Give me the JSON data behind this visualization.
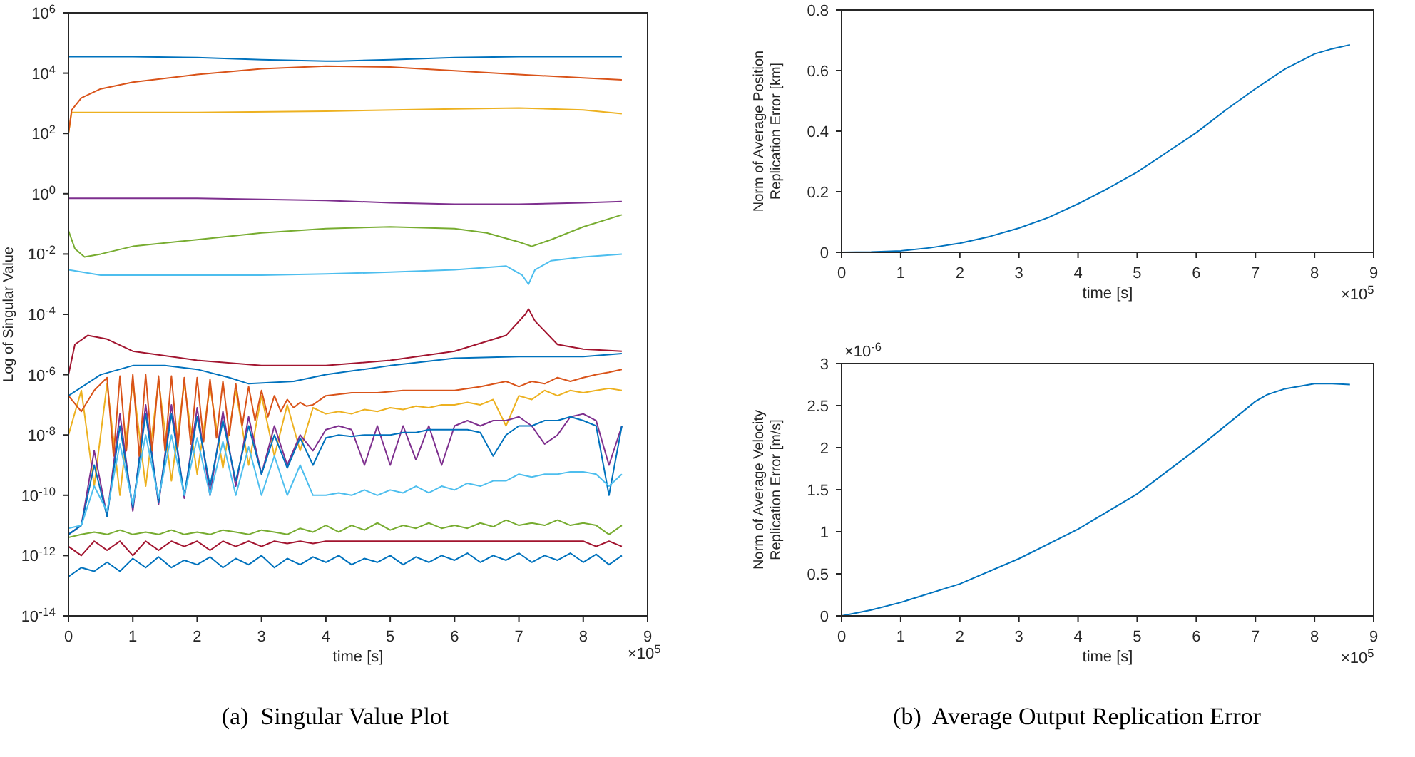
{
  "chart_data": [
    {
      "type": "line",
      "title": "(a)  Singular Value Plot",
      "xlabel": "time [s]",
      "ylabel": "Log of Singular Value",
      "log": true,
      "annotations": [
        "×10$^{5}$"
      ],
      "xlim": [
        0,
        9
      ],
      "xticks": [
        0,
        1,
        2,
        3,
        4,
        5,
        6,
        7,
        8,
        9
      ],
      "ylim": [
        1e-14,
        1000000.0
      ],
      "yticks": [
        {
          "value": 1e-14,
          "label": "10$^{-14}$"
        },
        {
          "value": 1e-12,
          "label": "10$^{-12}$"
        },
        {
          "value": 1e-10,
          "label": "10$^{-10}$"
        },
        {
          "value": 1e-08,
          "label": "10$^{-8}$"
        },
        {
          "value": 1e-06,
          "label": "10$^{-6}$"
        },
        {
          "value": 0.0001,
          "label": "10$^{-4}$"
        },
        {
          "value": 0.01,
          "label": "10$^{-2}$"
        },
        {
          "value": 1,
          "label": "10$^{0}$"
        },
        {
          "value": 100,
          "label": "10$^{2}$"
        },
        {
          "value": 10000,
          "label": "10$^{4}$"
        },
        {
          "value": 1000000,
          "label": "10$^{6}$"
        }
      ],
      "x": [
        0,
        0.2,
        0.4,
        0.6,
        0.8,
        1,
        1.2,
        1.4,
        1.6,
        1.8,
        2,
        2.2,
        2.4,
        2.6,
        2.8,
        3,
        3.2,
        3.4,
        3.6,
        3.8,
        4,
        4.2,
        4.4,
        4.6,
        4.8,
        5,
        5.2,
        5.4,
        5.6,
        5.8,
        6,
        6.2,
        6.4,
        6.6,
        6.8,
        7,
        7.2,
        7.4,
        7.6,
        7.8,
        8,
        8.2,
        8.4,
        8.6
      ],
      "series": [
        {
          "color": "#edb120",
          "values": [
            1e-08,
            3e-07,
            2e-10,
            5e-07,
            1e-10,
            6e-07,
            2e-10,
            6e-07,
            3e-10,
            5e-07,
            5e-10,
            4e-07,
            8e-10,
            3e-07,
            1e-09,
            2e-07,
            2e-09,
            1e-07,
            3e-09,
            8e-08,
            5e-08,
            6e-08,
            5e-08,
            7e-08,
            6e-08,
            8e-08,
            7e-08,
            9e-08,
            8e-08,
            1e-07,
            1e-07,
            1.2e-07,
            1e-07,
            1.5e-07,
            2e-08,
            2e-07,
            1.5e-07,
            3e-07,
            2e-07,
            3e-07,
            2.5e-07,
            3e-07,
            3.5e-07,
            3e-07
          ]
        },
        {
          "color": "#7e2f8e",
          "values": [
            5e-12,
            1e-11,
            3e-09,
            2e-11,
            5e-08,
            3e-11,
            1e-07,
            5e-11,
            1e-07,
            8e-11,
            8e-08,
            1e-10,
            6e-08,
            2e-10,
            4e-08,
            5e-10,
            2e-08,
            1e-09,
            1e-08,
            3e-09,
            1.5e-08,
            2e-08,
            1.5e-08,
            1e-09,
            2e-08,
            1e-09,
            2e-08,
            1.5e-09,
            2e-08,
            1e-09,
            2e-08,
            3e-08,
            2e-08,
            3e-08,
            3e-08,
            4e-08,
            2e-08,
            5e-09,
            1e-08,
            4e-08,
            5e-08,
            3e-08,
            1e-09,
            2e-08
          ]
        },
        {
          "color": "#0072bd",
          "values": [
            5e-12,
            1e-11,
            1e-09,
            2e-11,
            2e-08,
            4e-11,
            5e-08,
            6e-11,
            5e-08,
            1e-10,
            4e-08,
            2e-10,
            3e-08,
            3e-10,
            2e-08,
            5e-10,
            1e-08,
            8e-10,
            8e-09,
            1e-09,
            8e-09,
            1e-08,
            9e-09,
            1e-08,
            1e-08,
            1e-08,
            1.2e-08,
            1.2e-08,
            1.5e-08,
            1.5e-08,
            1.5e-08,
            1.5e-08,
            1.2e-08,
            2e-09,
            1e-08,
            2e-08,
            2e-08,
            3e-08,
            3e-08,
            4e-08,
            3e-08,
            2e-08,
            1e-10,
            2e-08
          ]
        },
        {
          "color": "#4dbeee",
          "values": [
            8e-12,
            1e-11,
            2e-10,
            3e-11,
            5e-09,
            5e-11,
            1e-08,
            8e-11,
            1e-08,
            1e-10,
            8e-09,
            1e-10,
            6e-09,
            1e-10,
            4e-09,
            1e-10,
            2e-09,
            1e-10,
            1e-09,
            1e-10,
            1e-10,
            1.2e-10,
            1e-10,
            1.5e-10,
            1e-10,
            1.5e-10,
            1.2e-10,
            2e-10,
            1.2e-10,
            2e-10,
            1.5e-10,
            2.5e-10,
            2e-10,
            3e-10,
            3e-10,
            5e-10,
            4e-10,
            5e-10,
            5e-10,
            6e-10,
            6e-10,
            5e-10,
            2e-10,
            5e-10
          ]
        },
        {
          "color": "#77ac30",
          "values": [
            4e-12,
            5e-12,
            6e-12,
            5e-12,
            7e-12,
            5e-12,
            6e-12,
            5e-12,
            7e-12,
            5e-12,
            6e-12,
            5e-12,
            7e-12,
            6e-12,
            5e-12,
            7e-12,
            6e-12,
            5e-12,
            8e-12,
            6e-12,
            1e-11,
            6e-12,
            1e-11,
            7e-12,
            1.2e-11,
            7e-12,
            1e-11,
            8e-12,
            1.2e-11,
            8e-12,
            1e-11,
            8e-12,
            1.2e-11,
            9e-12,
            1.5e-11,
            1e-11,
            1.2e-11,
            1e-11,
            1.5e-11,
            1e-11,
            1.2e-11,
            1e-11,
            5e-12,
            1e-11
          ]
        },
        {
          "color": "#a2142f",
          "values": [
            2e-12,
            1e-12,
            3e-12,
            1.5e-12,
            3e-12,
            1e-12,
            3e-12,
            1.5e-12,
            3e-12,
            2e-12,
            3e-12,
            1.5e-12,
            3e-12,
            2e-12,
            3e-12,
            2e-12,
            3e-12,
            2.5e-12,
            3e-12,
            2.5e-12,
            3e-12,
            3e-12,
            3e-12,
            3e-12,
            3e-12,
            3e-12,
            3e-12,
            3e-12,
            3e-12,
            3e-12,
            3e-12,
            3e-12,
            3e-12,
            3e-12,
            3e-12,
            3e-12,
            3e-12,
            3e-12,
            3e-12,
            3e-12,
            3e-12,
            2e-12,
            3e-12,
            2e-12
          ]
        },
        {
          "color": "#0072bd",
          "values": [
            2e-13,
            4e-13,
            3e-13,
            6e-13,
            3e-13,
            8e-13,
            4e-13,
            9e-13,
            4e-13,
            7e-13,
            5e-13,
            9e-13,
            4e-13,
            8e-13,
            5e-13,
            1e-12,
            4e-13,
            8e-13,
            5e-13,
            9e-13,
            6e-13,
            1e-12,
            5e-13,
            8e-13,
            6e-13,
            1e-12,
            5e-13,
            9e-13,
            6e-13,
            1e-12,
            7e-13,
            1.2e-12,
            6e-13,
            1e-12,
            7e-13,
            1.2e-12,
            6e-13,
            1e-12,
            7e-13,
            1.2e-12,
            6e-13,
            1.1e-12,
            5e-13,
            1e-12
          ]
        },
        {
          "color": "#d95319",
          "x": [
            0,
            0.2,
            0.4,
            0.6,
            0.7,
            0.8,
            0.9,
            1,
            1.1,
            1.2,
            1.3,
            1.4,
            1.5,
            1.6,
            1.7,
            1.8,
            1.9,
            2,
            2.1,
            2.2,
            2.3,
            2.4,
            2.5,
            2.6,
            2.7,
            2.8,
            2.9,
            3,
            3.1,
            3.2,
            3.3,
            3.4,
            3.5,
            3.6,
            3.7,
            3.8,
            4,
            4.4,
            4.8,
            5.2,
            5.6,
            6,
            6.4,
            6.8,
            7,
            7.2,
            7.4,
            7.6,
            7.8,
            8,
            8.2,
            8.4,
            8.6
          ],
          "values": [
            2e-07,
            6e-08,
            3e-07,
            8e-07,
            2e-09,
            9e-07,
            3e-09,
            1e-06,
            2e-09,
            1e-06,
            3e-09,
            9e-07,
            3e-09,
            9e-07,
            4e-09,
            8e-07,
            5e-09,
            8e-07,
            6e-09,
            7e-07,
            8e-09,
            6e-07,
            1e-08,
            5e-07,
            2e-08,
            4e-07,
            3e-08,
            3e-07,
            4e-08,
            2e-07,
            6e-08,
            1.5e-07,
            8e-08,
            1.2e-07,
            9e-08,
            1e-07,
            2e-07,
            2.5e-07,
            2.5e-07,
            3e-07,
            3e-07,
            3e-07,
            4e-07,
            6e-07,
            4e-07,
            6e-07,
            5e-07,
            8e-07,
            6e-07,
            8e-07,
            1e-06,
            1.2e-06,
            1.5e-06
          ]
        },
        {
          "color": "#0072bd",
          "x": [
            0,
            0.5,
            1,
            1.5,
            2,
            2.5,
            2.8,
            3.5,
            4,
            5,
            6,
            7,
            8,
            8.6
          ],
          "values": [
            2e-07,
            1e-06,
            2e-06,
            2e-06,
            1.5e-06,
            8e-07,
            5e-07,
            6e-07,
            1e-06,
            2e-06,
            3.5e-06,
            4e-06,
            4e-06,
            5e-06
          ]
        },
        {
          "color": "#a2142f",
          "x": [
            0,
            0.1,
            0.3,
            0.6,
            1,
            2,
            3,
            4,
            5,
            6,
            6.8,
            7.1,
            7.15,
            7.25,
            7.6,
            8,
            8.6
          ],
          "values": [
            1e-06,
            1e-05,
            2e-05,
            1.5e-05,
            6e-06,
            3e-06,
            2e-06,
            2e-06,
            3e-06,
            6e-06,
            2e-05,
            0.0001,
            0.00015,
            6e-05,
            1e-05,
            7e-06,
            6e-06
          ]
        },
        {
          "color": "#4dbeee",
          "x": [
            0,
            0.5,
            1,
            2,
            3,
            4,
            5,
            6,
            6.8,
            7.05,
            7.15,
            7.25,
            7.5,
            8,
            8.6
          ],
          "values": [
            0.003,
            0.002,
            0.002,
            0.002,
            0.002,
            0.0022,
            0.0025,
            0.003,
            0.004,
            0.002,
            0.001,
            0.003,
            0.006,
            0.008,
            0.01
          ]
        },
        {
          "color": "#77ac30",
          "x": [
            0,
            0.1,
            0.25,
            0.5,
            1,
            2,
            3,
            4,
            5,
            6,
            6.5,
            7,
            7.2,
            7.5,
            8,
            8.6
          ],
          "values": [
            0.06,
            0.015,
            0.008,
            0.01,
            0.018,
            0.03,
            0.05,
            0.07,
            0.08,
            0.07,
            0.05,
            0.025,
            0.018,
            0.03,
            0.08,
            0.2
          ]
        },
        {
          "color": "#7e2f8e",
          "x": [
            0,
            2,
            4,
            5,
            6,
            7,
            8,
            8.6
          ],
          "values": [
            0.7,
            0.7,
            0.6,
            0.5,
            0.45,
            0.45,
            0.5,
            0.55
          ]
        },
        {
          "color": "#edb120",
          "x": [
            0,
            0.05,
            0.5,
            2,
            4,
            6,
            7,
            8,
            8.6
          ],
          "values": [
            100,
            500,
            500,
            500,
            550,
            650,
            700,
            600,
            450
          ]
        },
        {
          "color": "#d95319",
          "x": [
            0,
            0.05,
            0.2,
            0.5,
            1,
            2,
            3,
            4,
            5,
            6,
            7,
            8,
            8.6
          ],
          "values": [
            100,
            600,
            1500,
            3000,
            5000,
            9000,
            14000,
            17000,
            16000,
            12000,
            9000,
            7000,
            6000
          ]
        },
        {
          "color": "#0072bd",
          "x": [
            0,
            1,
            2,
            3,
            4,
            4.2,
            5,
            6,
            7,
            8,
            8.6
          ],
          "values": [
            35000,
            35000,
            33000,
            28000,
            25000,
            25000,
            28000,
            33000,
            35000,
            35000,
            35000
          ]
        }
      ]
    },
    {
      "type": "line",
      "xlabel": "time [s]",
      "ylabel": "Norm of Average Position\nReplication Error [km]",
      "annotations": [
        "×10$^{5}$"
      ],
      "xlim": [
        0,
        9
      ],
      "xticks": [
        0,
        1,
        2,
        3,
        4,
        5,
        6,
        7,
        8,
        9
      ],
      "ylim": [
        0,
        0.8
      ],
      "yticks": [
        0,
        0.2,
        0.4,
        0.6,
        0.8
      ],
      "x": [
        0,
        0.5,
        1,
        1.5,
        2,
        2.5,
        3,
        3.5,
        4,
        4.5,
        5,
        5.5,
        6,
        6.5,
        7,
        7.5,
        8,
        8.3,
        8.6
      ],
      "series": [
        {
          "color": "#0072bd",
          "values": [
            0,
            0.001,
            0.005,
            0.015,
            0.03,
            0.052,
            0.08,
            0.115,
            0.16,
            0.21,
            0.265,
            0.33,
            0.395,
            0.47,
            0.54,
            0.605,
            0.655,
            0.672,
            0.685
          ]
        }
      ]
    },
    {
      "type": "line",
      "title": "(b)  Average Output Replication Error",
      "xlabel": "time [s]",
      "ylabel": "Norm of Average Velocity\nReplication Error [m/s]",
      "annotations": [
        "×10$^{-6}$",
        "×10$^{5}$"
      ],
      "xlim": [
        0,
        9
      ],
      "xticks": [
        0,
        1,
        2,
        3,
        4,
        5,
        6,
        7,
        8,
        9
      ],
      "ylim": [
        0,
        3
      ],
      "yticks": [
        0,
        0.5,
        1,
        1.5,
        2,
        2.5,
        3
      ],
      "x": [
        0,
        0.5,
        1,
        2,
        3,
        4,
        5,
        6,
        7,
        7.2,
        7.5,
        8,
        8.3,
        8.6
      ],
      "series": [
        {
          "color": "#0072bd",
          "values": [
            0,
            0.07,
            0.16,
            0.38,
            0.68,
            1.03,
            1.45,
            1.98,
            2.55,
            2.63,
            2.7,
            2.76,
            2.76,
            2.75
          ]
        }
      ]
    }
  ]
}
